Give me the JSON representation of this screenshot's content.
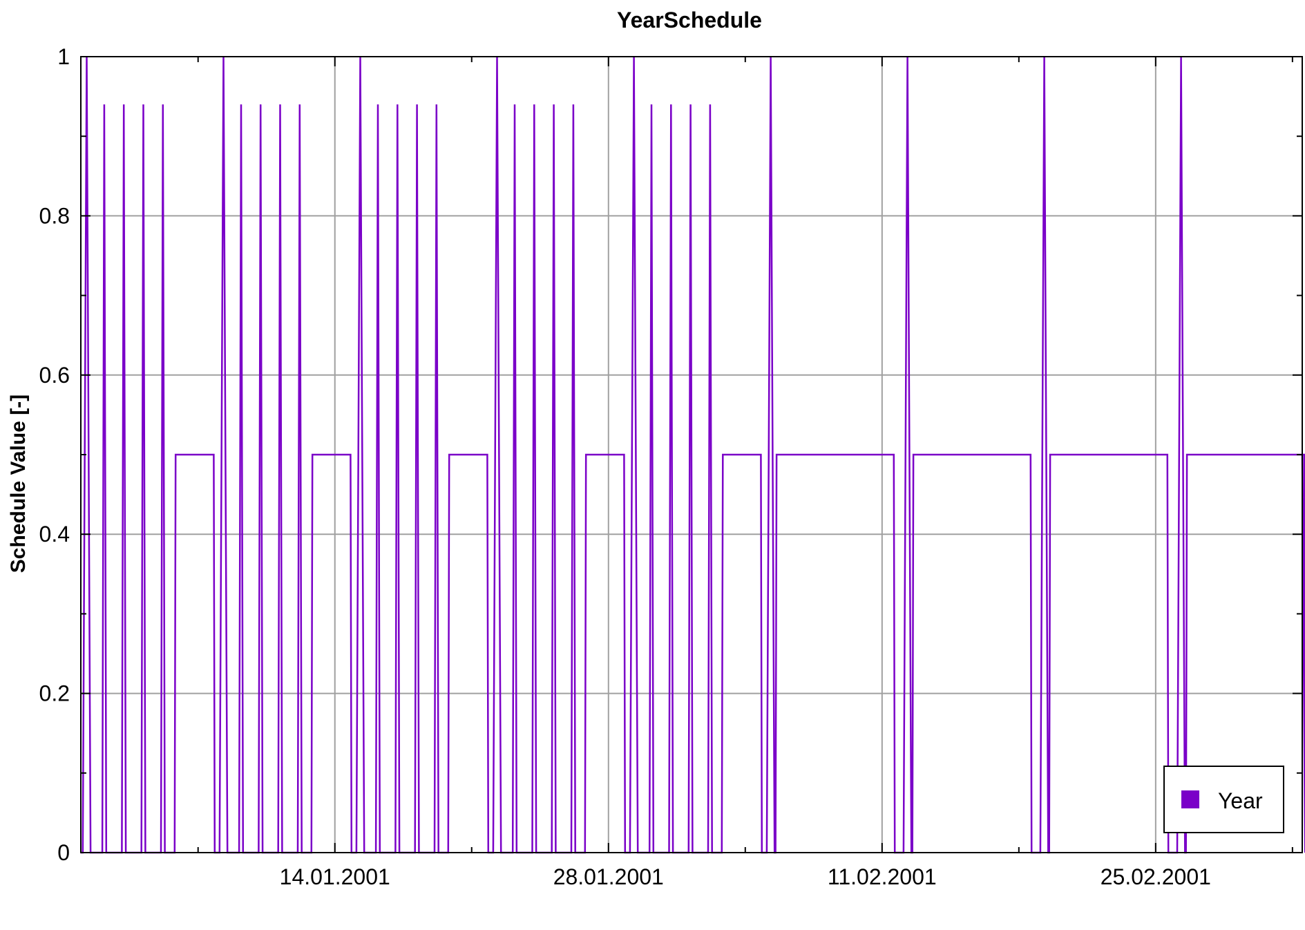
{
  "chart_data": {
    "type": "line",
    "title": "YearSchedule",
    "xlabel": "",
    "ylabel": "Schedule Value [-]",
    "ylim": [
      0,
      1
    ],
    "xlim_days": [
      0,
      62.5
    ],
    "grid": true,
    "legend_position": "bottom-right",
    "y_ticks": [
      {
        "value": 0,
        "label": "0"
      },
      {
        "value": 0.2,
        "label": "0.2"
      },
      {
        "value": 0.4,
        "label": "0.4"
      },
      {
        "value": 0.6,
        "label": "0.6"
      },
      {
        "value": 0.8,
        "label": "0.8"
      },
      {
        "value": 1,
        "label": "1"
      }
    ],
    "x_ticks": [
      {
        "day": 13,
        "label": "14.01.2001"
      },
      {
        "day": 27,
        "label": "28.01.2001"
      },
      {
        "day": 41,
        "label": "11.02.2001"
      },
      {
        "day": 55,
        "label": "25.02.2001"
      }
    ],
    "x_minor_tick_days": [
      6,
      20,
      34,
      48,
      62
    ],
    "series": [
      {
        "name": "Year",
        "color": "#7a00c8",
        "weeks": [
          {
            "start_day": 0,
            "workdays": true,
            "weekday_peak": 0.94,
            "weekend_level": 0.5,
            "spike_peak": 1.0
          },
          {
            "start_day": 7,
            "workdays": true,
            "weekday_peak": 0.94,
            "weekend_level": 0.5,
            "spike_peak": 1.0
          },
          {
            "start_day": 14,
            "workdays": true,
            "weekday_peak": 0.94,
            "weekend_level": 0.5,
            "spike_peak": 1.0
          },
          {
            "start_day": 21,
            "workdays": true,
            "weekday_peak": 0.94,
            "weekend_level": 0.5,
            "spike_peak": 1.0
          },
          {
            "start_day": 28,
            "workdays": true,
            "weekday_peak": 0.94,
            "weekend_level": 0.5,
            "spike_peak": 1.0
          },
          {
            "start_day": 35,
            "workdays": false,
            "weekend_level": 0.5,
            "spike_peak": 1.0
          },
          {
            "start_day": 42,
            "workdays": false,
            "weekend_level": 0.5,
            "spike_peak": 1.0
          },
          {
            "start_day": 49,
            "workdays": false,
            "weekend_level": 0.5,
            "spike_peak": 1.0
          },
          {
            "start_day": 56,
            "workdays": false,
            "weekend_level": 0.5,
            "spike_peak": 1.0
          }
        ]
      }
    ]
  }
}
